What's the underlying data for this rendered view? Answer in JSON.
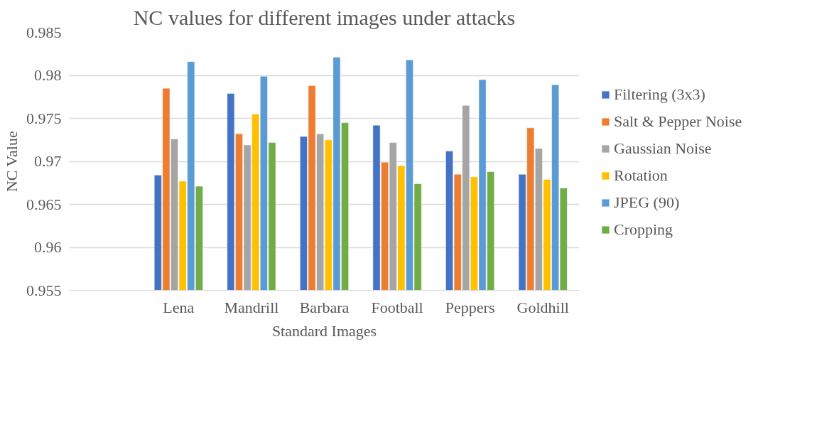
{
  "chart_data": {
    "type": "bar",
    "title": "NC values for different images under attacks",
    "xlabel": "Standard Images",
    "ylabel": "NC Value",
    "categories": [
      null,
      "Lena",
      "Mandrill",
      "Barbara",
      "Football",
      "Peppers",
      "Goldhill"
    ],
    "series": [
      {
        "name": "Filtering (3x3)",
        "color": "#4472c4",
        "values": [
          null,
          0.9684,
          0.9779,
          0.9729,
          0.9742,
          0.9712,
          0.9685
        ]
      },
      {
        "name": "Salt & Pepper Noise",
        "color": "#ed7d31",
        "values": [
          null,
          0.9785,
          0.9732,
          0.9788,
          0.9699,
          0.9685,
          0.9739
        ]
      },
      {
        "name": "Gaussian Noise",
        "color": "#a5a5a5",
        "values": [
          null,
          0.9726,
          0.9719,
          0.9732,
          0.9722,
          0.9765,
          0.9715
        ]
      },
      {
        "name": "Rotation",
        "color": "#ffc000",
        "values": [
          null,
          0.9677,
          0.9755,
          0.9725,
          0.9695,
          0.9682,
          0.9679
        ]
      },
      {
        "name": "JPEG (90)",
        "color": "#5b9bd5",
        "values": [
          null,
          0.9816,
          0.9799,
          0.9821,
          0.9818,
          0.9795,
          0.9789
        ]
      },
      {
        "name": "Cropping",
        "color": "#70ad47",
        "values": [
          null,
          0.9671,
          0.9722,
          0.9745,
          0.9674,
          0.9688,
          0.9669
        ]
      }
    ],
    "ylim": [
      0.955,
      0.985
    ],
    "yticks": [
      0.955,
      0.96,
      0.965,
      0.97,
      0.975,
      0.98,
      0.985
    ],
    "grid": "y",
    "legend": "right"
  }
}
